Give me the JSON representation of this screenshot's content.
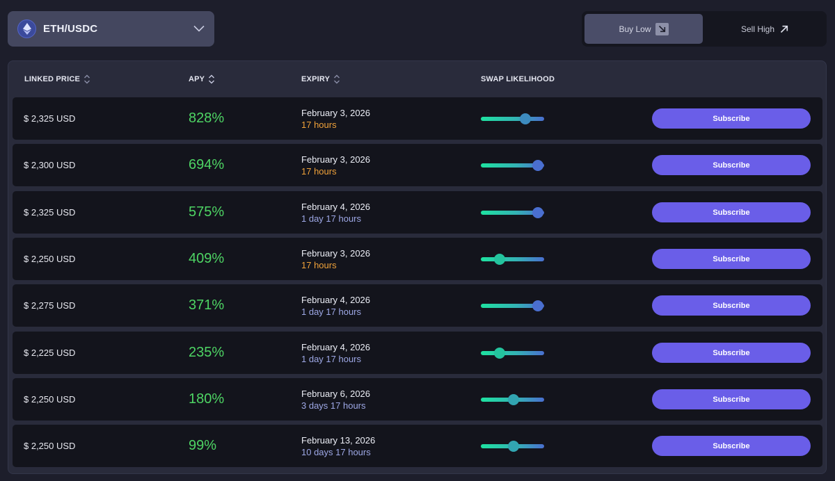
{
  "pair_selector": {
    "label": "ETH/USDC",
    "icon": "eth-icon"
  },
  "side_toggle": {
    "buy_label": "Buy Low",
    "sell_label": "Sell High",
    "active": "buy"
  },
  "table": {
    "headers": {
      "linked_price": "LINKED PRICE",
      "apy": "APY",
      "expiry": "EXPIRY",
      "swap_likelihood": "SWAP LIKELIHOOD"
    },
    "subscribe_label": "Subscribe",
    "rows": [
      {
        "price": "$ 2,325 USD",
        "apy": "828%",
        "date": "February 3, 2026",
        "remaining": "17 hours",
        "urgent": true,
        "likelihood": 0.7
      },
      {
        "price": "$ 2,300 USD",
        "apy": "694%",
        "date": "February 3, 2026",
        "remaining": "17 hours",
        "urgent": true,
        "likelihood": 0.9
      },
      {
        "price": "$ 2,325 USD",
        "apy": "575%",
        "date": "February 4, 2026",
        "remaining": "1 day 17 hours",
        "urgent": false,
        "likelihood": 0.9
      },
      {
        "price": "$ 2,250 USD",
        "apy": "409%",
        "date": "February 3, 2026",
        "remaining": "17 hours",
        "urgent": true,
        "likelihood": 0.3
      },
      {
        "price": "$ 2,275 USD",
        "apy": "371%",
        "date": "February 4, 2026",
        "remaining": "1 day 17 hours",
        "urgent": false,
        "likelihood": 0.9
      },
      {
        "price": "$ 2,225 USD",
        "apy": "235%",
        "date": "February 4, 2026",
        "remaining": "1 day 17 hours",
        "urgent": false,
        "likelihood": 0.3
      },
      {
        "price": "$ 2,250 USD",
        "apy": "180%",
        "date": "February 6, 2026",
        "remaining": "3 days 17 hours",
        "urgent": false,
        "likelihood": 0.52
      },
      {
        "price": "$ 2,250 USD",
        "apy": "99%",
        "date": "February 13, 2026",
        "remaining": "10 days 17 hours",
        "urgent": false,
        "likelihood": 0.52
      }
    ]
  },
  "colors": {
    "apy_green": "#4ed564",
    "urgent_orange": "#f0a23a",
    "long_blue": "#9ea8e6",
    "subscribe_purple": "#6a5ee8"
  }
}
